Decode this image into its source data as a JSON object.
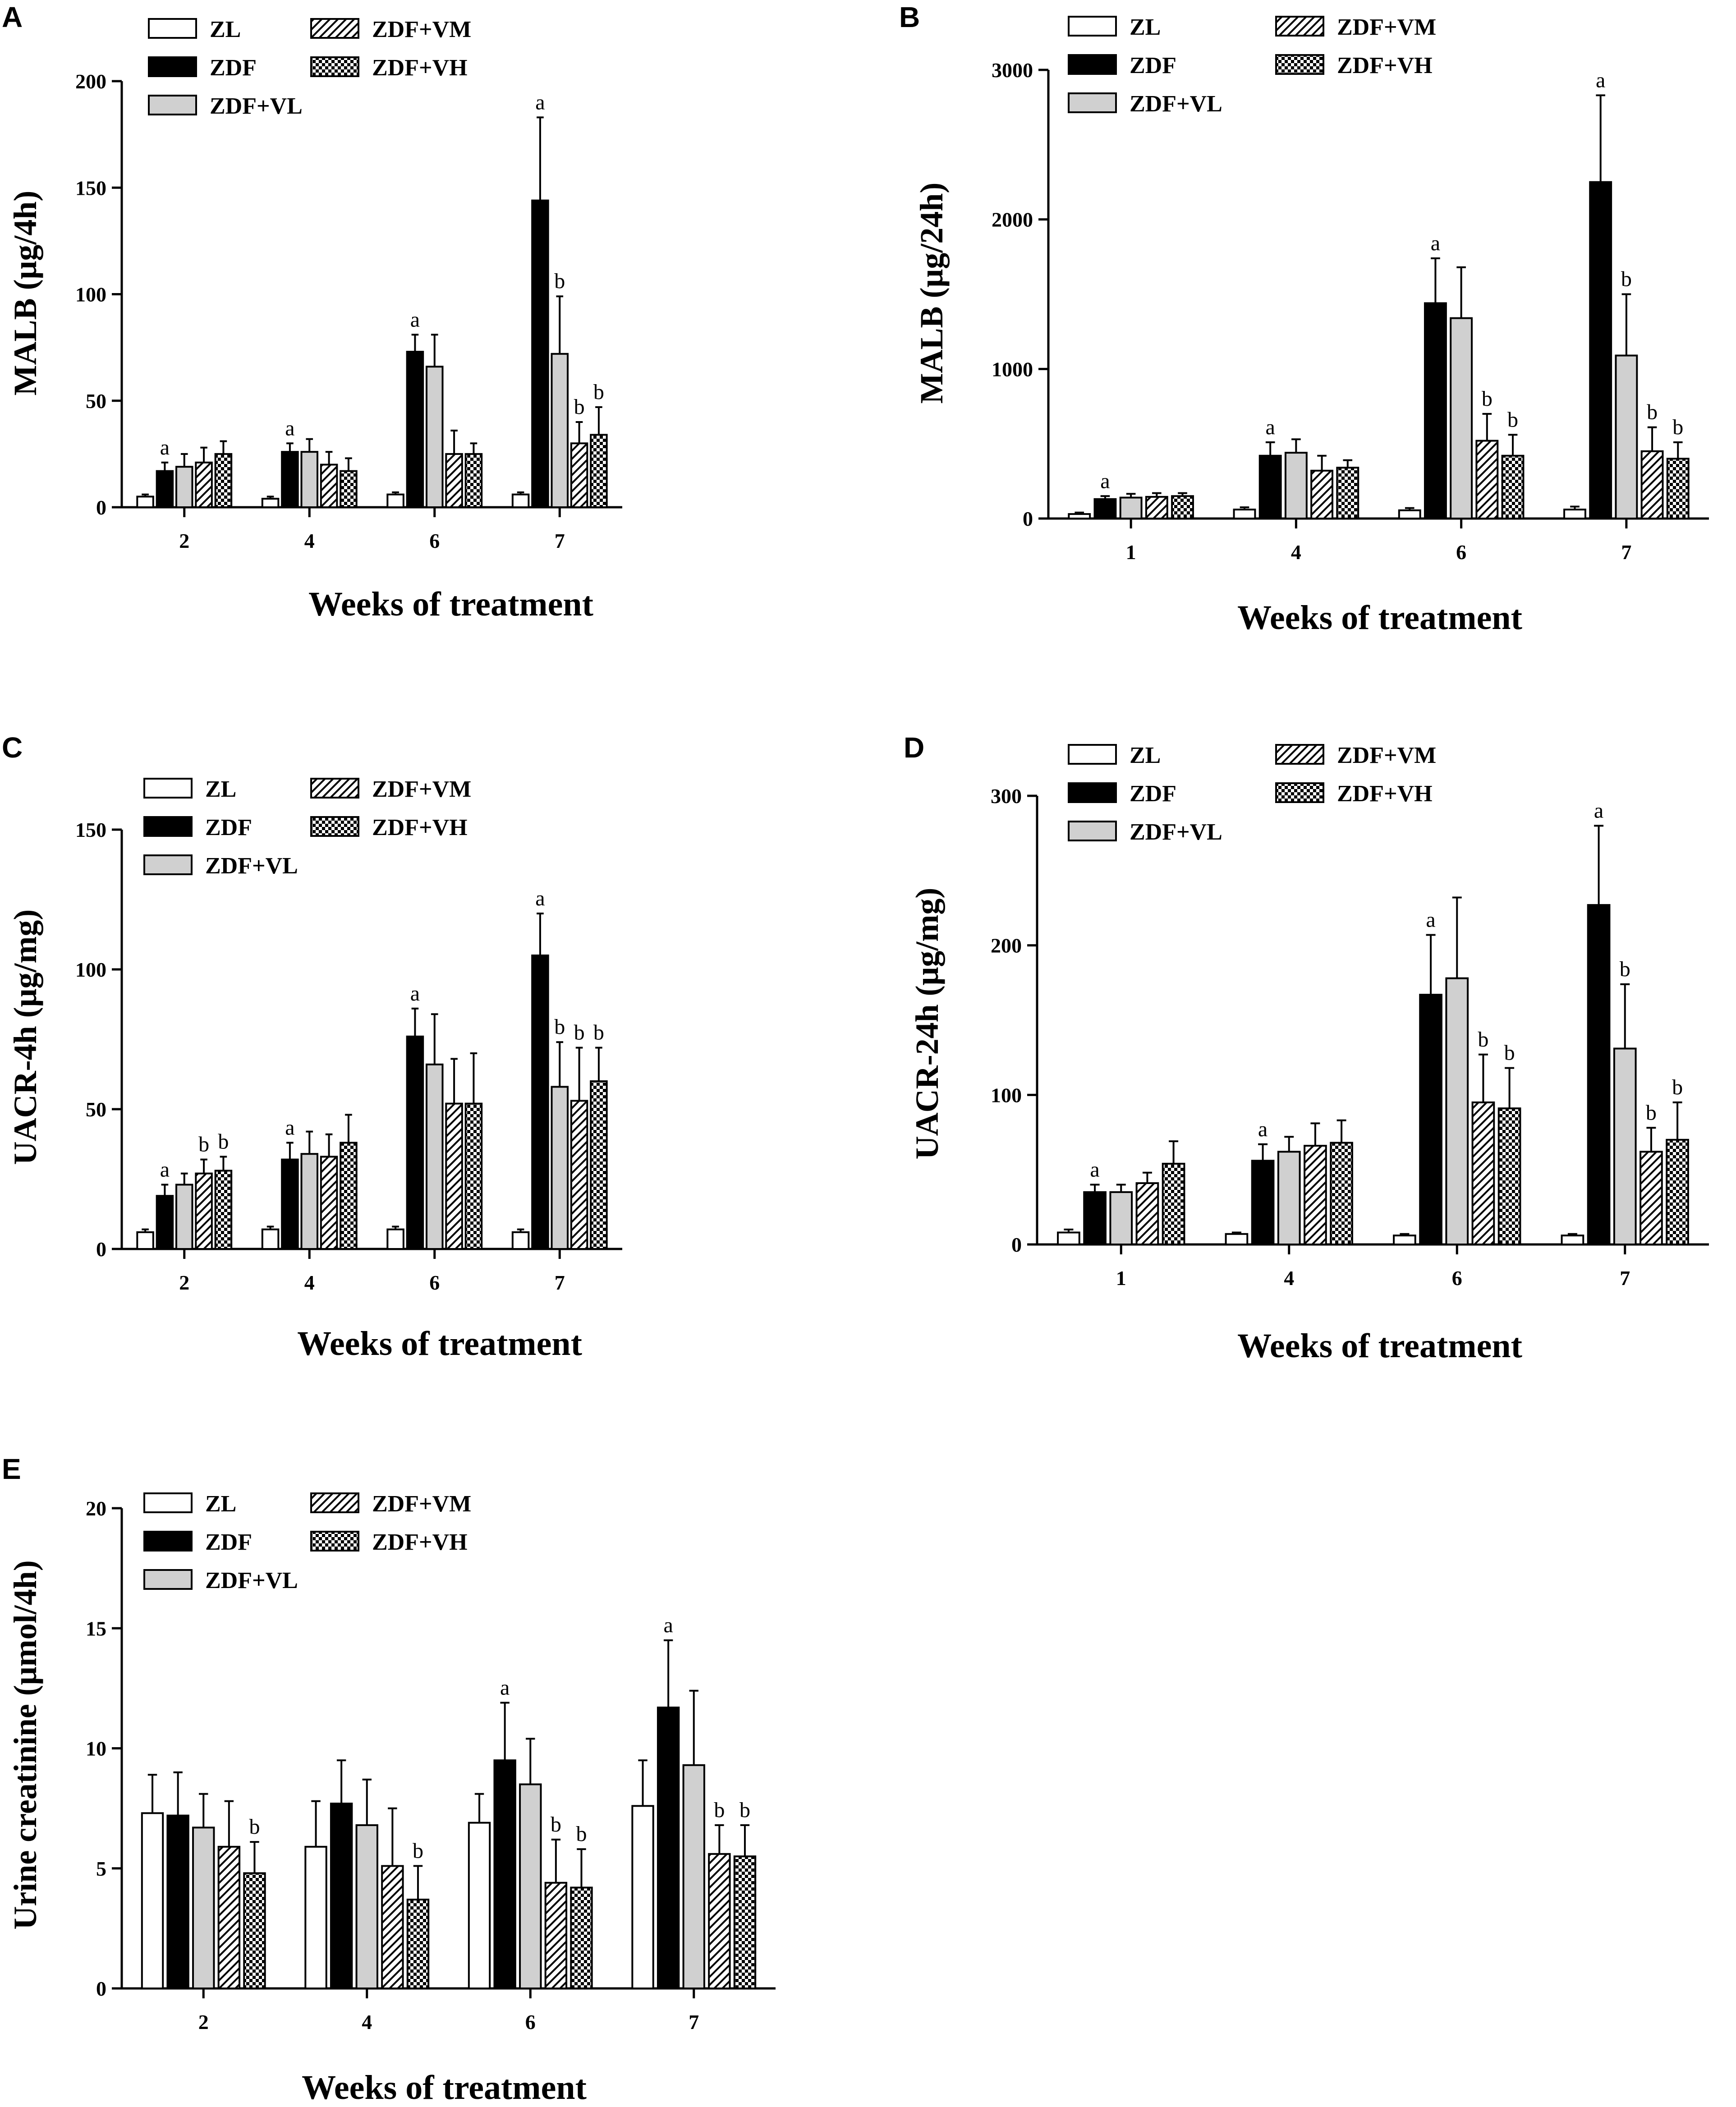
{
  "figure": {
    "groups": [
      "ZL",
      "ZDF",
      "ZDF+VL",
      "ZDF+VM",
      "ZDF+VH"
    ],
    "group_fills": [
      "white",
      "#000000",
      "#d0d0d0",
      "hatch",
      "checker"
    ]
  },
  "chart_data": [
    {
      "panel": "A",
      "type": "bar",
      "title": "",
      "xlabel": "Weeks of treatment",
      "ylabel": "MALB  (μg/4h)",
      "ylim": [
        0,
        200
      ],
      "yticks": [
        0,
        50,
        100,
        150,
        200
      ],
      "categories": [
        "2",
        "4",
        "6",
        "7"
      ],
      "series": [
        {
          "name": "ZL",
          "values": [
            5,
            4,
            6,
            6
          ],
          "errors": [
            1,
            1,
            1,
            1
          ],
          "sig": [
            "",
            "",
            "",
            ""
          ]
        },
        {
          "name": "ZDF",
          "values": [
            17,
            26,
            73,
            144
          ],
          "errors": [
            4,
            4,
            8,
            39
          ],
          "sig": [
            "a",
            "a",
            "a",
            "a"
          ]
        },
        {
          "name": "ZDF+VL",
          "values": [
            19,
            26,
            66,
            72
          ],
          "errors": [
            6,
            6,
            15,
            27
          ],
          "sig": [
            "",
            "",
            "",
            "b"
          ]
        },
        {
          "name": "ZDF+VM",
          "values": [
            21,
            20,
            25,
            30
          ],
          "errors": [
            7,
            6,
            11,
            10
          ],
          "sig": [
            "",
            "",
            "",
            "b"
          ]
        },
        {
          "name": "ZDF+VH",
          "values": [
            25,
            17,
            25,
            34
          ],
          "errors": [
            6,
            6,
            5,
            13
          ],
          "sig": [
            "",
            "",
            "",
            "b"
          ]
        }
      ]
    },
    {
      "panel": "B",
      "type": "bar",
      "title": "",
      "xlabel": "Weeks of treatment",
      "ylabel": "MALB  (μg/24h)",
      "ylim": [
        0,
        3000
      ],
      "yticks": [
        0,
        1000,
        2000,
        3000
      ],
      "categories": [
        "1",
        "4",
        "6",
        "7"
      ],
      "series": [
        {
          "name": "ZL",
          "values": [
            30,
            60,
            55,
            60
          ],
          "errors": [
            10,
            15,
            15,
            20
          ],
          "sig": [
            "",
            "",
            "",
            ""
          ]
        },
        {
          "name": "ZDF",
          "values": [
            130,
            420,
            1440,
            2250
          ],
          "errors": [
            20,
            90,
            300,
            580
          ],
          "sig": [
            "a",
            "a",
            "a",
            "a"
          ]
        },
        {
          "name": "ZDF+VL",
          "values": [
            140,
            440,
            1340,
            1090
          ],
          "errors": [
            25,
            90,
            340,
            410
          ],
          "sig": [
            "",
            "",
            "",
            "b"
          ]
        },
        {
          "name": "ZDF+VM",
          "values": [
            145,
            320,
            520,
            450
          ],
          "errors": [
            25,
            100,
            180,
            160
          ],
          "sig": [
            "",
            "",
            "b",
            "b"
          ]
        },
        {
          "name": "ZDF+VH",
          "values": [
            150,
            340,
            420,
            400
          ],
          "errors": [
            20,
            50,
            140,
            110
          ],
          "sig": [
            "",
            "",
            "b",
            "b"
          ]
        }
      ]
    },
    {
      "panel": "C",
      "type": "bar",
      "title": "",
      "xlabel": "Weeks of treatment",
      "ylabel": "UACR-4h   (μg/mg)",
      "ylim": [
        0,
        150
      ],
      "yticks": [
        0,
        50,
        100,
        150
      ],
      "categories": [
        "2",
        "4",
        "6",
        "7"
      ],
      "series": [
        {
          "name": "ZL",
          "values": [
            6,
            7,
            7,
            6
          ],
          "errors": [
            1,
            1,
            1,
            1
          ],
          "sig": [
            "",
            "",
            "",
            ""
          ]
        },
        {
          "name": "ZDF",
          "values": [
            19,
            32,
            76,
            105
          ],
          "errors": [
            4,
            6,
            10,
            15
          ],
          "sig": [
            "a",
            "a",
            "a",
            "a"
          ]
        },
        {
          "name": "ZDF+VL",
          "values": [
            23,
            34,
            66,
            58
          ],
          "errors": [
            4,
            8,
            18,
            16
          ],
          "sig": [
            "",
            "",
            "",
            "b"
          ]
        },
        {
          "name": "ZDF+VM",
          "values": [
            27,
            33,
            52,
            53
          ],
          "errors": [
            5,
            8,
            16,
            19
          ],
          "sig": [
            "b",
            "",
            "",
            "b"
          ]
        },
        {
          "name": "ZDF+VH",
          "values": [
            28,
            38,
            52,
            60
          ],
          "errors": [
            5,
            10,
            18,
            12
          ],
          "sig": [
            "b",
            "",
            "",
            "b"
          ]
        }
      ]
    },
    {
      "panel": "D",
      "type": "bar",
      "title": "",
      "xlabel": "Weeks of treatment",
      "ylabel": "UACR-24h   (μg/mg)",
      "ylim": [
        0,
        300
      ],
      "yticks": [
        0,
        100,
        200,
        300
      ],
      "categories": [
        "1",
        "4",
        "6",
        "7"
      ],
      "series": [
        {
          "name": "ZL",
          "values": [
            8,
            7,
            6,
            6
          ],
          "errors": [
            2,
            1,
            1,
            1
          ],
          "sig": [
            "",
            "",
            "",
            ""
          ]
        },
        {
          "name": "ZDF",
          "values": [
            35,
            56,
            167,
            227
          ],
          "errors": [
            5,
            11,
            40,
            53
          ],
          "sig": [
            "a",
            "a",
            "a",
            "a"
          ]
        },
        {
          "name": "ZDF+VL",
          "values": [
            35,
            62,
            178,
            131
          ],
          "errors": [
            5,
            10,
            54,
            43
          ],
          "sig": [
            "",
            "",
            "",
            "b"
          ]
        },
        {
          "name": "ZDF+VM",
          "values": [
            41,
            66,
            95,
            62
          ],
          "errors": [
            7,
            15,
            32,
            16
          ],
          "sig": [
            "",
            "",
            "b",
            "b"
          ]
        },
        {
          "name": "ZDF+VH",
          "values": [
            54,
            68,
            91,
            70
          ],
          "errors": [
            15,
            15,
            27,
            25
          ],
          "sig": [
            "",
            "",
            "b",
            "b"
          ]
        }
      ]
    },
    {
      "panel": "E",
      "type": "bar",
      "title": "",
      "xlabel": "Weeks of treatment",
      "ylabel": "Urine creatinine  (μmol/4h)",
      "ylim": [
        0,
        20
      ],
      "yticks": [
        0,
        5,
        10,
        15,
        20
      ],
      "categories": [
        "2",
        "4",
        "6",
        "7"
      ],
      "series": [
        {
          "name": "ZL",
          "values": [
            7.3,
            5.9,
            6.9,
            7.6
          ],
          "errors": [
            1.6,
            1.9,
            1.2,
            1.9
          ],
          "sig": [
            "",
            "",
            "",
            ""
          ]
        },
        {
          "name": "ZDF",
          "values": [
            7.2,
            7.7,
            9.5,
            11.7
          ],
          "errors": [
            1.8,
            1.8,
            2.4,
            2.8
          ],
          "sig": [
            "",
            "",
            "a",
            "a"
          ]
        },
        {
          "name": "ZDF+VL",
          "values": [
            6.7,
            6.8,
            8.5,
            9.3
          ],
          "errors": [
            1.4,
            1.9,
            1.9,
            3.1
          ],
          "sig": [
            "",
            "",
            "",
            ""
          ]
        },
        {
          "name": "ZDF+VM",
          "values": [
            5.9,
            5.1,
            4.4,
            5.6
          ],
          "errors": [
            1.9,
            2.4,
            1.8,
            1.2
          ],
          "sig": [
            "",
            "",
            "b",
            "b"
          ]
        },
        {
          "name": "ZDF+VH",
          "values": [
            4.8,
            3.7,
            4.2,
            5.5
          ],
          "errors": [
            1.3,
            1.4,
            1.6,
            1.3
          ],
          "sig": [
            "b",
            "b",
            "b",
            "b"
          ]
        }
      ]
    }
  ]
}
